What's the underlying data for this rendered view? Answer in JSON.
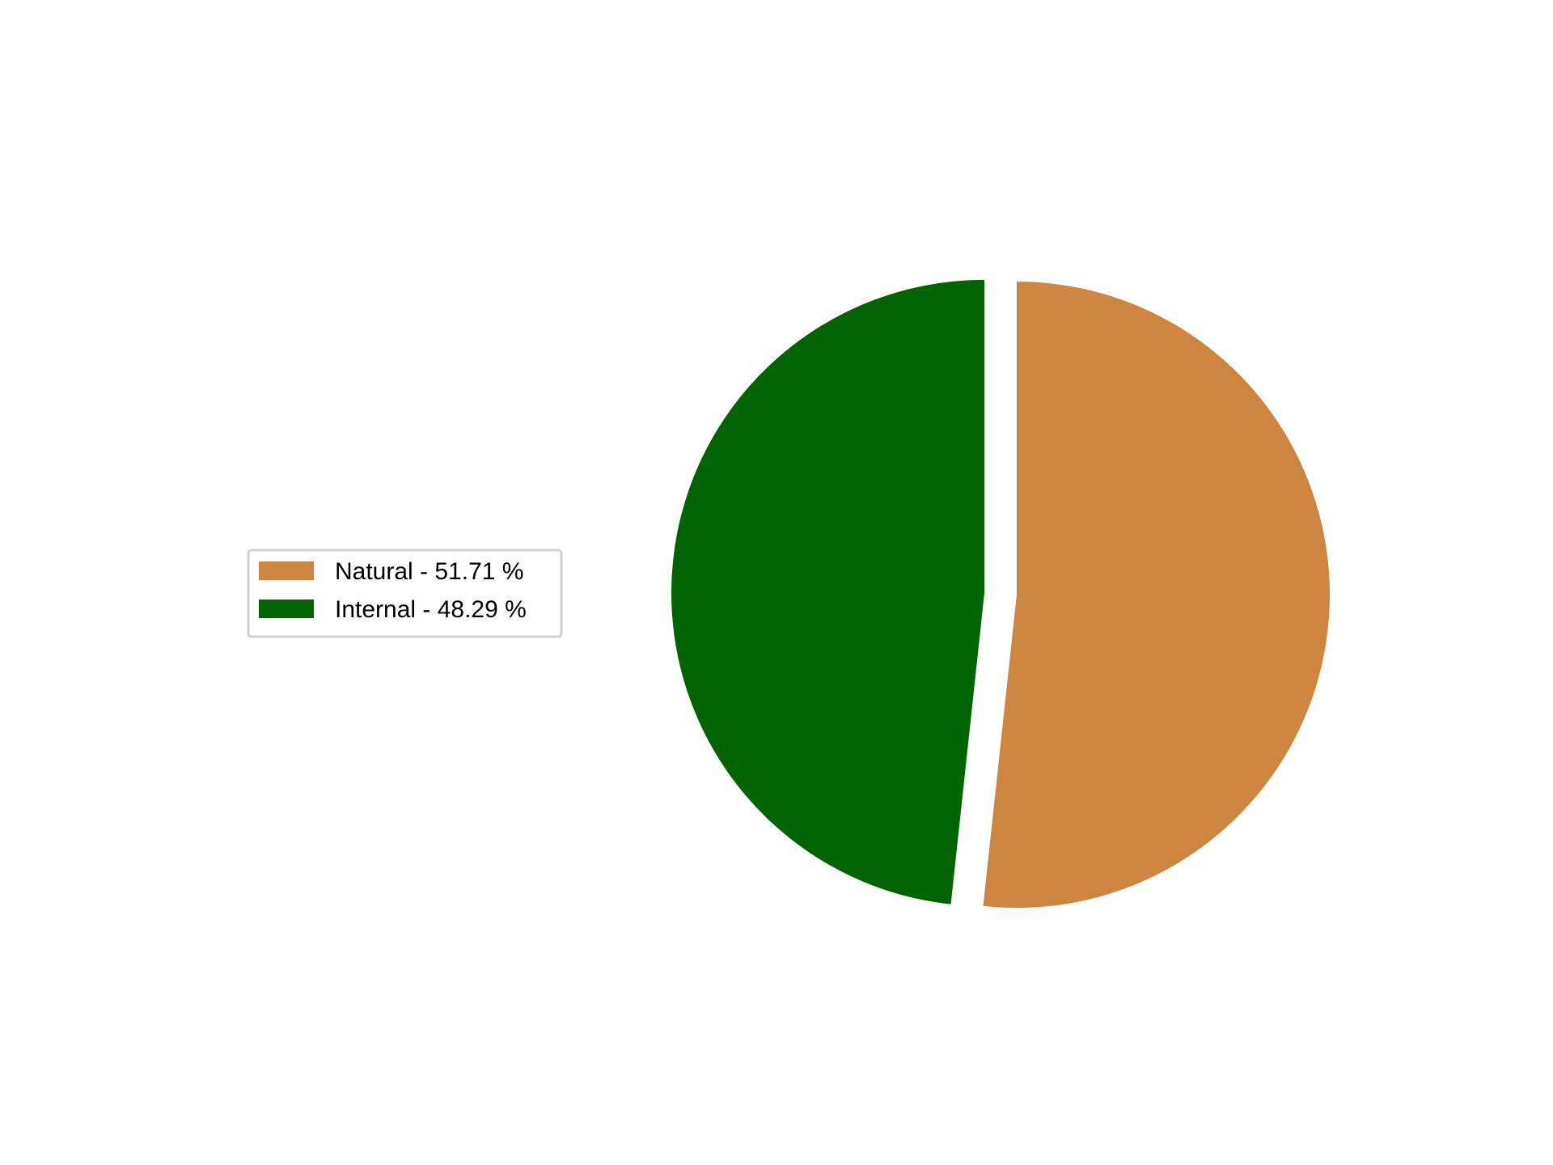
{
  "chart_data": {
    "type": "pie",
    "slices": [
      {
        "label": "Natural",
        "value": 51.71,
        "color": "#CD853F",
        "legend_label": "Natural - 51.71 %"
      },
      {
        "label": "Internal",
        "value": 48.29,
        "color": "#006400",
        "legend_label": "Internal - 48.29 %"
      }
    ],
    "start_angle_deg": 90,
    "direction": "clockwise",
    "exploded": true,
    "legend_position": "left",
    "title": ""
  }
}
